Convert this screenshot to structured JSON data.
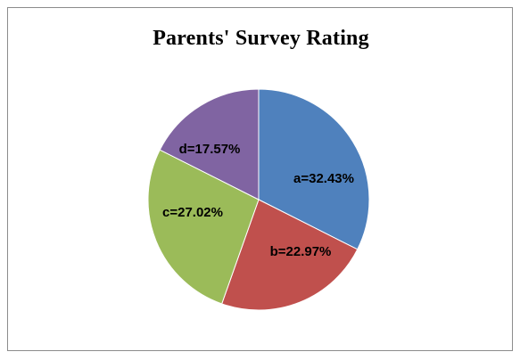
{
  "chart_data": {
    "type": "pie",
    "title": "Parents' Survey Rating",
    "slices": [
      {
        "label": "a",
        "value": 32.43,
        "display": "a=32.43%",
        "color": "#4F81BD"
      },
      {
        "label": "b",
        "value": 22.97,
        "display": "b=22.97%",
        "color": "#C0504D"
      },
      {
        "label": "c",
        "value": 27.02,
        "display": "c=27.02%",
        "color": "#9BBB59"
      },
      {
        "label": "d",
        "value": 17.57,
        "display": "d=17.57%",
        "color": "#8064A2"
      }
    ],
    "start_angle_deg": 0,
    "direction": "clockwise",
    "legend": "none"
  }
}
